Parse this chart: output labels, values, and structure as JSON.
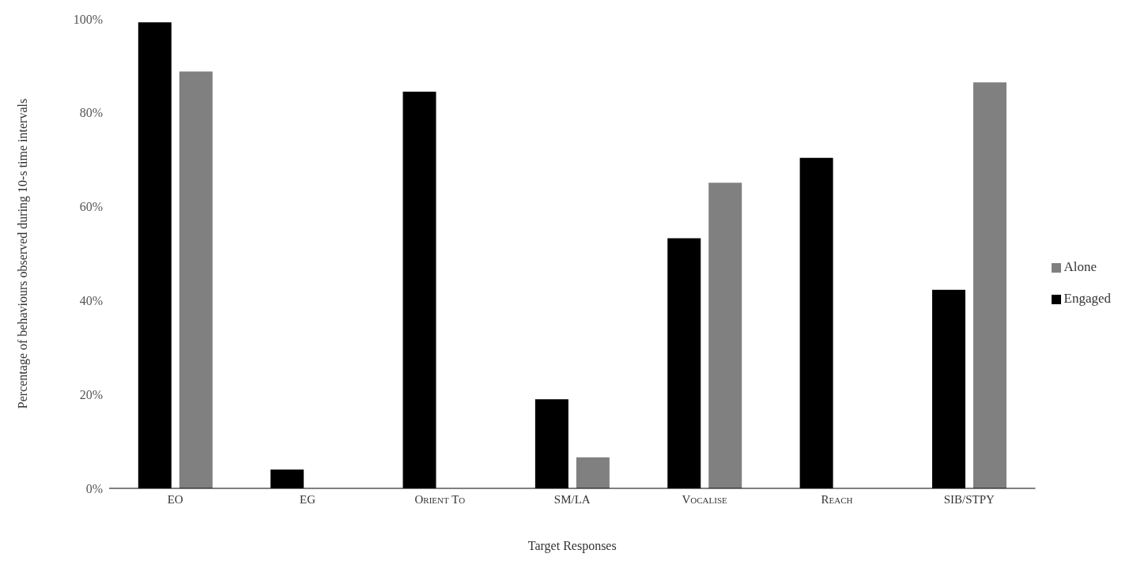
{
  "chart_data": {
    "type": "bar",
    "xlabel": "Target Responses",
    "ylabel": "Percentage of behaviours observed during 10-s time intervals",
    "categories": [
      "EO",
      "EG",
      "Orient To",
      "SM/LA",
      "Vocalise",
      "Reach",
      "SIB/STPY"
    ],
    "series": [
      {
        "name": "Engaged",
        "color": "#000000",
        "values": [
          99.3,
          4,
          84.5,
          19,
          53.3,
          70.4,
          42.3
        ]
      },
      {
        "name": "Alone",
        "color": "#808080",
        "values": [
          88.8,
          0,
          0,
          6.6,
          65.1,
          0,
          86.5
        ]
      }
    ],
    "ylim": [
      0,
      100
    ],
    "yticks": [
      {
        "value": 0,
        "label": "0%"
      },
      {
        "value": 20,
        "label": "20%"
      },
      {
        "value": 40,
        "label": "40%"
      },
      {
        "value": 60,
        "label": "60%"
      },
      {
        "value": 80,
        "label": "80%"
      },
      {
        "value": 100,
        "label": "100%"
      }
    ],
    "legend": "right"
  }
}
